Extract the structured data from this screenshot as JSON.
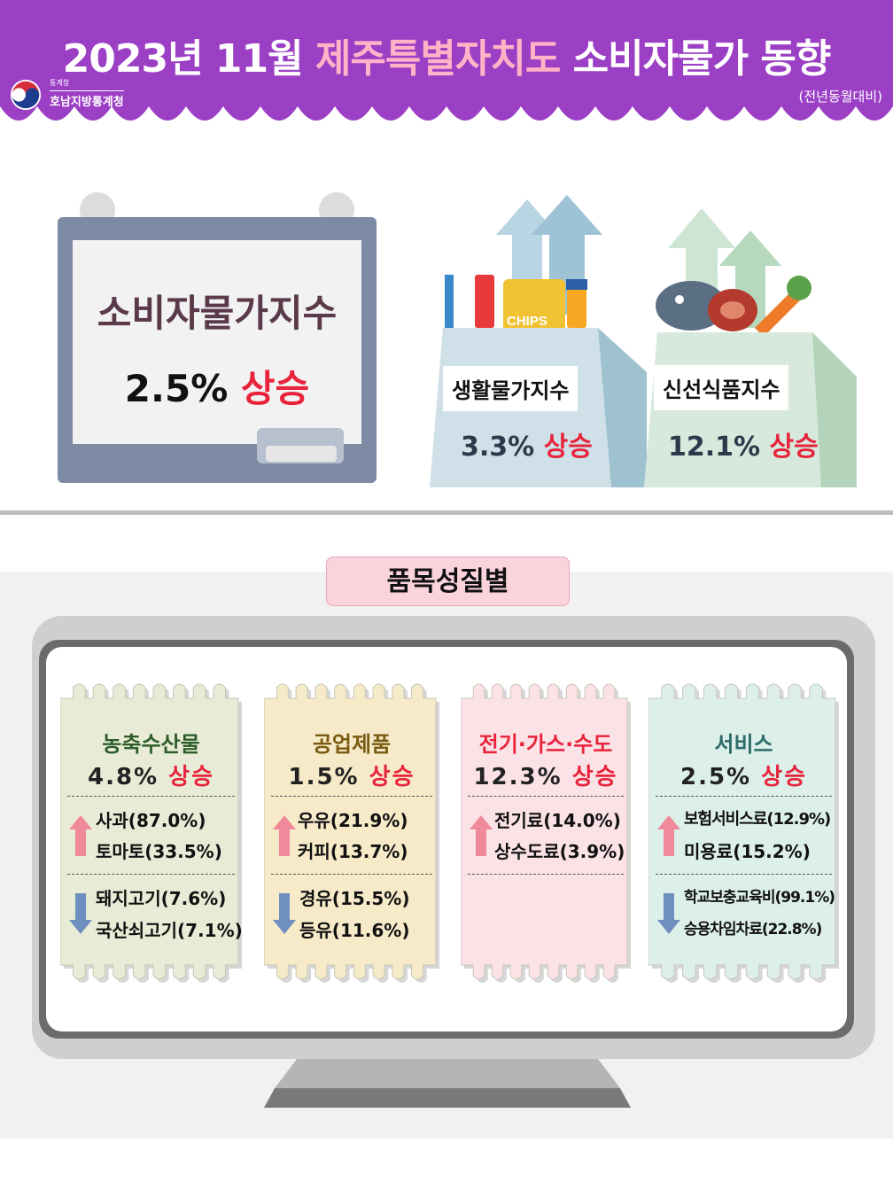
{
  "header": {
    "title_prefix": "2023년 11월 ",
    "title_highlight": "제주특별자치도",
    "title_suffix": " 소비자물가 동향",
    "subtitle": "(전년동월대비)",
    "org_small": "통계청",
    "org": "호남지방통계청",
    "banner_color": "#9b3fc5"
  },
  "main_index": {
    "title": "소비자물가지수",
    "value": "2.5%",
    "direction": "상승"
  },
  "living_index": {
    "label": "생활물가지수",
    "value": "3.3%",
    "direction": "상승",
    "chips_text": "CHIPS"
  },
  "fresh_index": {
    "label": "신선식품지수",
    "value": "12.1%",
    "direction": "상승"
  },
  "section": {
    "title": "품목성질별"
  },
  "categories": [
    {
      "title": "농축수산물",
      "title_color": "#2e5d2a",
      "bg": "#e8ecd6",
      "value": "4.8%",
      "direction": "상승",
      "up": [
        "사과(87.0%)",
        "토마토(33.5%)"
      ],
      "down": [
        "돼지고기(7.6%)",
        "국산쇠고기(7.1%)"
      ]
    },
    {
      "title": "공업제품",
      "title_color": "#7a5a10",
      "bg": "#f6eac9",
      "value": "1.5%",
      "direction": "상승",
      "up": [
        "우유(21.9%)",
        "커피(13.7%)"
      ],
      "down": [
        "경유(15.5%)",
        "등유(11.6%)"
      ]
    },
    {
      "title": "전기·가스·수도",
      "title_color": "#e8243c",
      "bg": "#fbe2e6",
      "value": "12.3%",
      "direction": "상승",
      "up": [
        "전기료(14.0%)",
        "상수도료(3.9%)"
      ],
      "down": []
    },
    {
      "title": "서비스",
      "title_color": "#2e6b6a",
      "bg": "#dcefe9",
      "value": "2.5%",
      "direction": "상승",
      "up": [
        "보험서비스료(12.9%)",
        "미용료(15.2%)"
      ],
      "down": [
        "학교보충교육비(99.1%)",
        "승용차임차료(22.8%)"
      ]
    }
  ]
}
